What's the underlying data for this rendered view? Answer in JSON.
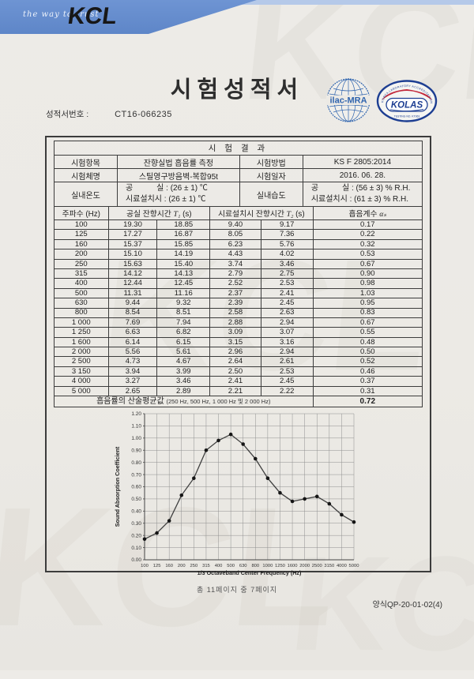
{
  "watermark": "KCL",
  "header": {
    "tagline": "the way to trust",
    "logo": "KCL",
    "title": "시험성적서",
    "report_no_label": "성적서번호 :",
    "report_no": "CT16-066235",
    "ilac_text": "ilac-MRA",
    "kolas": {
      "label": "KOLAS",
      "rim_text": "KOREA LABORATORY ACCREDITATION SCHEME",
      "bottom_text": "TESTING NO. KT063"
    }
  },
  "table": {
    "section_title": "시 험 결 과",
    "info": {
      "r1": {
        "l1": "시험항목",
        "v1": "잔향실법 흡음률 측정",
        "l2": "시험방법",
        "v2": "KS F 2805:2014"
      },
      "r2": {
        "l1": "시험체명",
        "v1": "스틸영구방음벽-복합95t",
        "l2": "시험일자",
        "v2": "2016. 06. 28."
      },
      "r3": {
        "l1": "실내온도",
        "v1a": "공　　　실 : (26 ± 1) ℃",
        "v1b": "시료설치시 : (26 ± 1) ℃",
        "l2": "실내습도",
        "v2a": "공　　　실 : (56 ± 3) % R.H.",
        "v2b": "시료설치시 : (61 ± 3) % R.H."
      }
    },
    "cols": {
      "freq": "주파수 (Hz)",
      "t1_pre": "공실 잔향시간 ",
      "t1_sym": "T₁",
      "t1_post": " (s)",
      "t2_pre": "시료설치시 잔향시간 ",
      "t2_sym": "T₂",
      "t2_post": " (s)",
      "alpha_pre": "흡음계수 ",
      "alpha_sym": "αₛ"
    },
    "rows": [
      [
        "100",
        "19.30",
        "18.85",
        "9.40",
        "9.17",
        "0.17"
      ],
      [
        "125",
        "17.27",
        "16.87",
        "8.05",
        "7.36",
        "0.22"
      ],
      [
        "160",
        "15.37",
        "15.85",
        "6.23",
        "5.76",
        "0.32"
      ],
      [
        "200",
        "15.10",
        "14.19",
        "4.43",
        "4.02",
        "0.53"
      ],
      [
        "250",
        "15.63",
        "15.40",
        "3.74",
        "3.46",
        "0.67"
      ],
      [
        "315",
        "14.12",
        "14.13",
        "2.79",
        "2.75",
        "0.90"
      ],
      [
        "400",
        "12.44",
        "12.45",
        "2.52",
        "2.53",
        "0.98"
      ],
      [
        "500",
        "11.31",
        "11.16",
        "2.37",
        "2.41",
        "1.03"
      ],
      [
        "630",
        "9.44",
        "9.32",
        "2.39",
        "2.45",
        "0.95"
      ],
      [
        "800",
        "8.54",
        "8.51",
        "2.58",
        "2.63",
        "0.83"
      ],
      [
        "1 000",
        "7.69",
        "7.94",
        "2.88",
        "2.94",
        "0.67"
      ],
      [
        "1 250",
        "6.63",
        "6.82",
        "3.09",
        "3.07",
        "0.55"
      ],
      [
        "1 600",
        "6.14",
        "6.15",
        "3.15",
        "3.16",
        "0.48"
      ],
      [
        "2 000",
        "5.56",
        "5.61",
        "2.96",
        "2.94",
        "0.50"
      ],
      [
        "2 500",
        "4.73",
        "4.67",
        "2.64",
        "2.61",
        "0.52"
      ],
      [
        "3 150",
        "3.94",
        "3.99",
        "2.50",
        "2.53",
        "0.46"
      ],
      [
        "4 000",
        "3.27",
        "3.46",
        "2.41",
        "2.45",
        "0.37"
      ],
      [
        "5 000",
        "2.65",
        "2.89",
        "2.21",
        "2.22",
        "0.31"
      ]
    ],
    "avg": {
      "label": "흡음률의 산술평균값",
      "note": "(250 Hz, 500 Hz, 1 000 Hz 및 2 000 Hz)",
      "value": "0.72"
    }
  },
  "chart_data": {
    "type": "line",
    "title": "",
    "xlabel": "1/3 Octaveband Center Frequency (Hz)",
    "ylabel": "Sound Absorption Coefficient",
    "categories": [
      "100",
      "125",
      "160",
      "200",
      "250",
      "315",
      "400",
      "500",
      "630",
      "800",
      "1000",
      "1250",
      "1600",
      "2000",
      "2500",
      "3150",
      "4000",
      "5000"
    ],
    "values": [
      0.17,
      0.22,
      0.32,
      0.53,
      0.67,
      0.9,
      0.98,
      1.03,
      0.95,
      0.83,
      0.67,
      0.55,
      0.48,
      0.5,
      0.52,
      0.46,
      0.37,
      0.31
    ],
    "ylim": [
      0.0,
      1.2
    ],
    "ytick_step": 0.1,
    "grid": true,
    "legend": "none",
    "line_color": "#3f3f3f",
    "marker_color": "#151515",
    "grid_color": "#8f8f8f"
  },
  "footer": {
    "page": "총 11페이지 중 7페이지",
    "form": "양식QP-20-01-02(4)"
  }
}
